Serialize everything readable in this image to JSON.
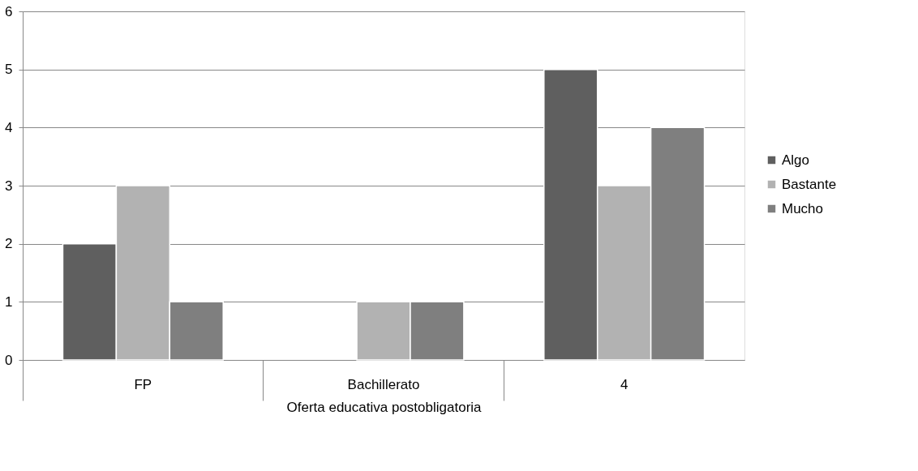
{
  "chart_data": {
    "type": "bar",
    "xlabel": "Oferta educativa postobligatoria",
    "categories": [
      "FP",
      "Bachillerato",
      "4"
    ],
    "series": [
      {
        "name": "Algo",
        "color": "#5f5f5f",
        "values": [
          2,
          0,
          5
        ]
      },
      {
        "name": "Bastante",
        "color": "#b2b2b2",
        "values": [
          3,
          1,
          3
        ]
      },
      {
        "name": "Mucho",
        "color": "#7f7f7f",
        "values": [
          1,
          1,
          4
        ]
      }
    ],
    "ylim": [
      0,
      6
    ],
    "yticks": [
      0,
      1,
      2,
      3,
      4,
      5,
      6
    ],
    "grid": "y",
    "legend": "right"
  }
}
